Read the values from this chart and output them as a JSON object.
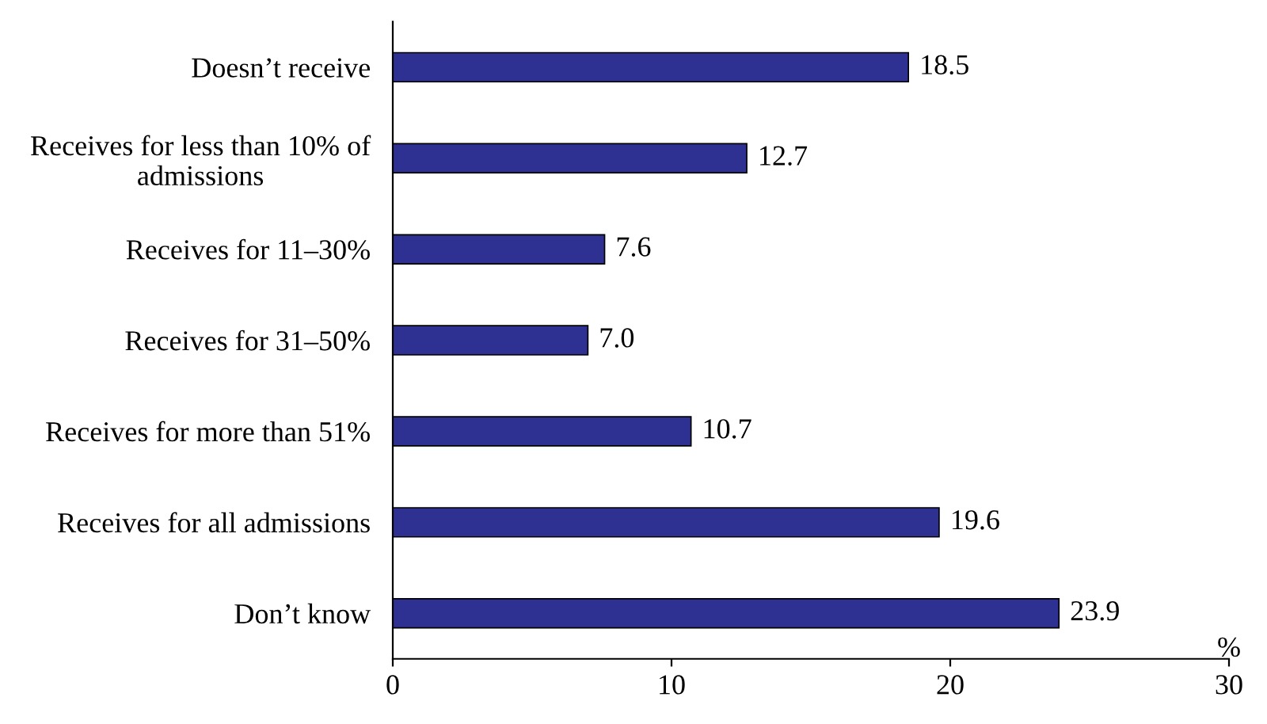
{
  "chart_data": {
    "type": "bar",
    "orientation": "horizontal",
    "xlabel": "%",
    "categories": [
      "Doesn’t receive",
      "Receives for less than 10% of admissions",
      "Receives for 11–30%",
      "Receives for 31–50%",
      "Receives for more than 51%",
      "Receives for all admissions",
      "Don’t know"
    ],
    "values": [
      18.5,
      12.7,
      7.6,
      7.0,
      10.7,
      19.6,
      23.9
    ],
    "color": "#2e3192",
    "value_labels": [
      "18.5",
      "12.7",
      "7.6",
      "7.0",
      "10.7",
      "19.6",
      "23.9"
    ],
    "xlim": [
      0,
      30
    ],
    "xticks": [
      0,
      10,
      20,
      30
    ],
    "grid": false,
    "legend": false
  }
}
